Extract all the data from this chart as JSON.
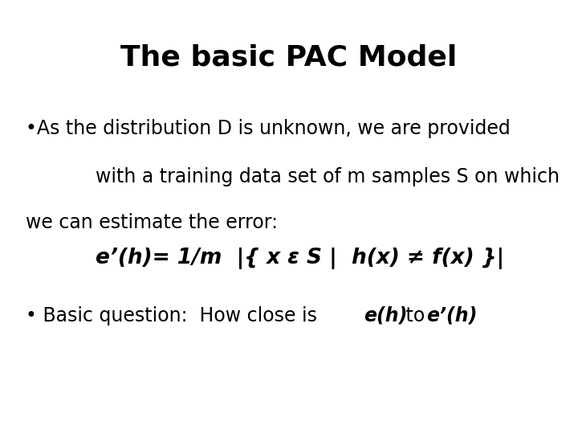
{
  "title": "The basic PAC Model",
  "title_fontsize": 26,
  "title_fontweight": "bold",
  "background_color": "#ffffff",
  "text_color": "#000000",
  "body_fontsize": 17,
  "formula_fontsize": 19
}
